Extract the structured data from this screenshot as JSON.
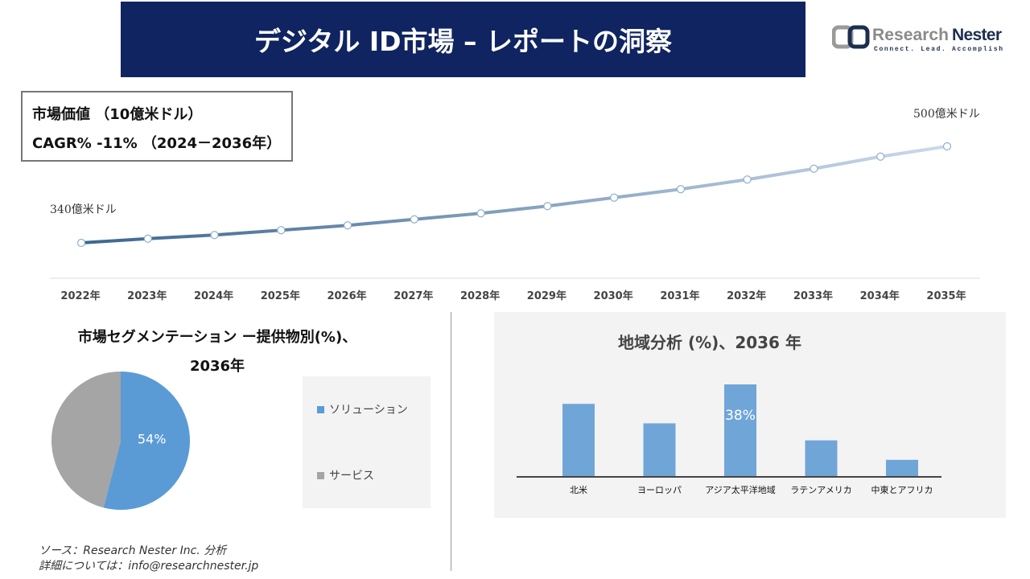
{
  "header": {
    "title": "デジタル ID市場 – レポートの洞察"
  },
  "logo": {
    "name": "Research Nester",
    "tagline": "Connect. Lead. Accomplish",
    "brand_color": "#1c2f4f"
  },
  "info": {
    "market_value_label": "市場価値 （10億米ドル）",
    "cagr_label": "CAGR% -11% （2024－2036年）"
  },
  "chart_data": [
    {
      "type": "line",
      "categories": [
        "2022年",
        "2023年",
        "2024年",
        "2025年",
        "2026年",
        "2027年",
        "2028年",
        "2029年",
        "2030年",
        "2031年",
        "2032年",
        "2033年",
        "2034年",
        "2035年"
      ],
      "values": [
        340,
        347,
        353,
        361,
        369,
        379,
        389,
        401,
        415,
        429,
        445,
        463,
        483,
        500
      ],
      "start_label": "340億米ドル",
      "end_label": "500億米ドル",
      "color_start": "#3c6690",
      "color_end": "#cbdaea"
    },
    {
      "type": "pie",
      "title": "市場セグメンテーション ー提供物別(%)、2036年",
      "title_line1": "市場セグメンテーション ー提供物別(%)、",
      "title_line2": "2036年",
      "slices": [
        {
          "name": "ソリューション",
          "value": 54,
          "label": "54%",
          "color": "#5b9bd5"
        },
        {
          "name": "サービス",
          "value": 46,
          "color": "#a5a5a5"
        }
      ],
      "legend": "right"
    },
    {
      "type": "bar",
      "title": "地域分析 (%)、2036 年",
      "categories": [
        "北米",
        "ヨーロッパ",
        "アジア太平洋地域",
        "ラテンアメリカ",
        "中東とアフリカ"
      ],
      "values": [
        30,
        22,
        38,
        15,
        7
      ],
      "data_labels": [
        "",
        "",
        "38%",
        "",
        ""
      ],
      "color": "#70a5d8"
    }
  ],
  "source": {
    "line1": "ソース：Research Nester Inc. 分析",
    "line2": "詳細については：info@researchnester.jp"
  }
}
